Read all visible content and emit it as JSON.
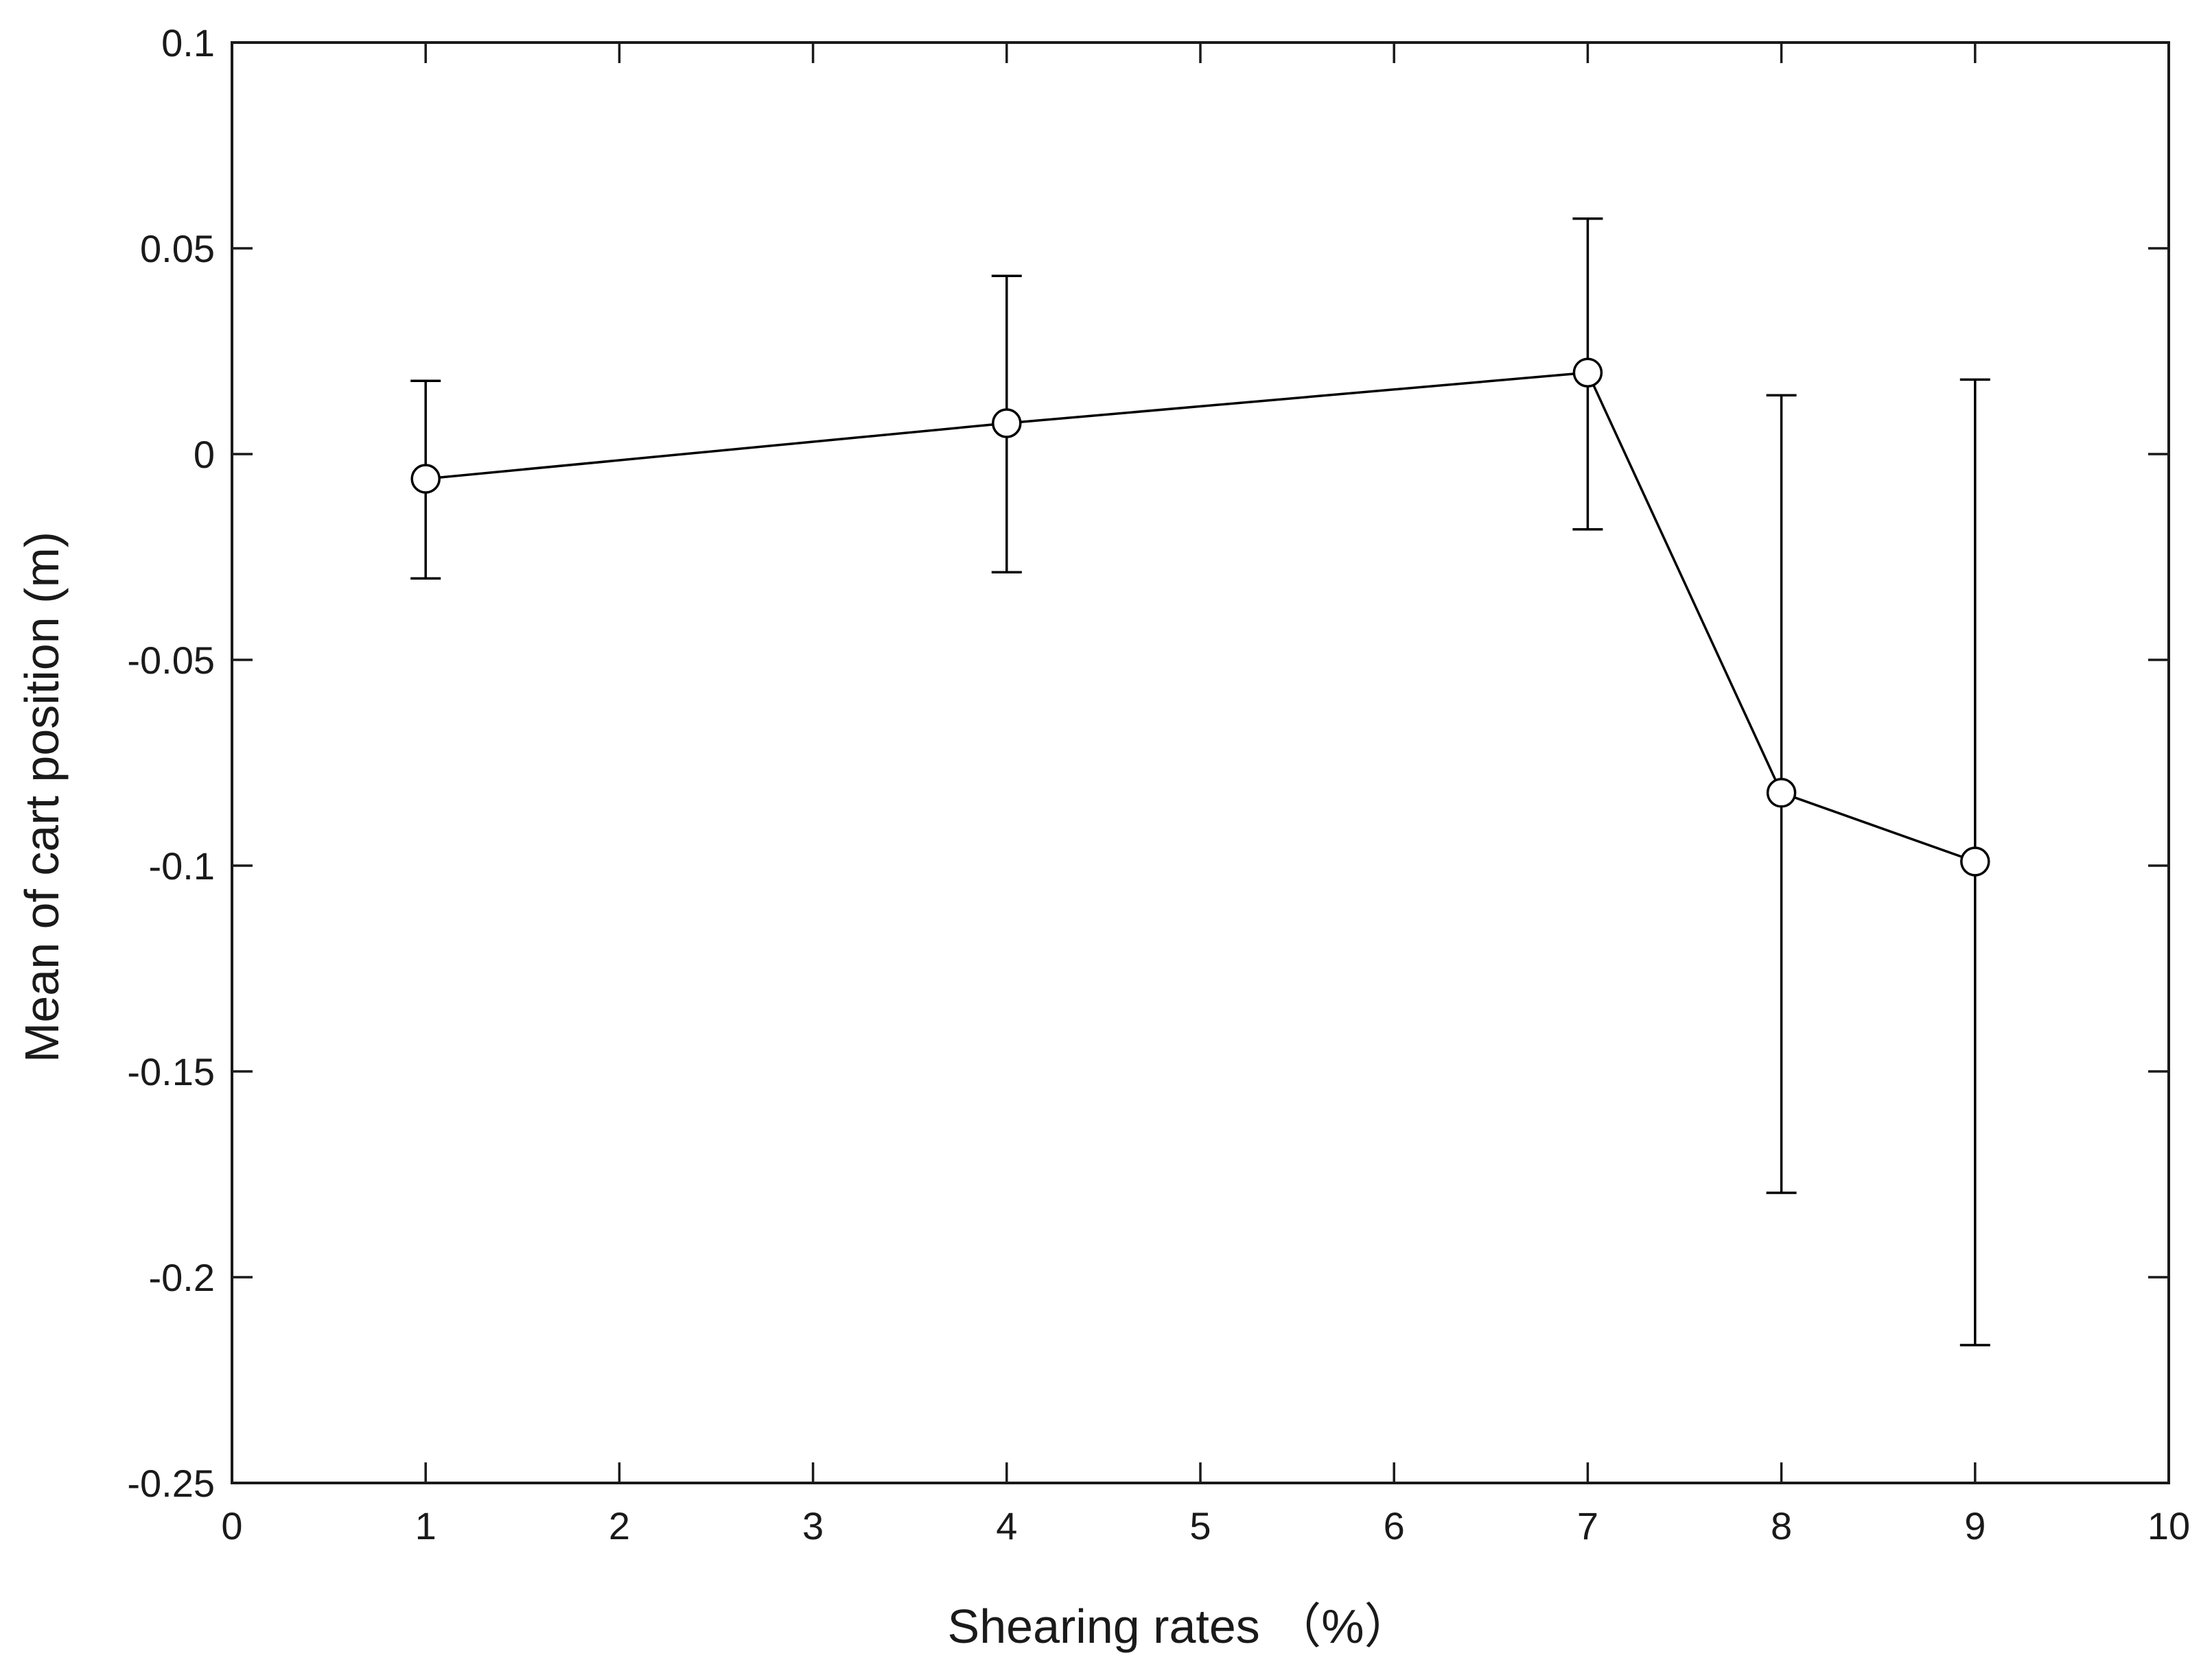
{
  "chart_data": {
    "type": "line",
    "title": "",
    "xlabel": "Shearing rates （%）",
    "ylabel": "Mean of cart position (m)",
    "xlim": [
      0,
      10
    ],
    "ylim": [
      -0.25,
      0.1
    ],
    "xticks": [
      0,
      1,
      2,
      3,
      4,
      5,
      6,
      7,
      8,
      9,
      10
    ],
    "xtick_labels": [
      "0",
      "1",
      "2",
      "3",
      "4",
      "5",
      "6",
      "7",
      "8",
      "9",
      "10"
    ],
    "yticks": [
      0.1,
      0.05,
      0,
      -0.05,
      -0.1,
      -0.15,
      -0.2,
      -0.25
    ],
    "ytick_labels": [
      "0.1",
      "0.05",
      "0",
      "-0.05",
      "-0.1",
      "-0.15",
      "-0.2",
      "-0.25"
    ],
    "grid": false,
    "marker": "open-circle",
    "series": [
      {
        "name": "Mean of cart position",
        "x": [
          1,
          4,
          7,
          8,
          9
        ],
        "y": [
          -0.006,
          0.0075,
          0.0198,
          -0.0823,
          -0.099
        ],
        "error_lower": [
          -0.0302,
          -0.0287,
          -0.0183,
          -0.1795,
          -0.2165
        ],
        "error_upper": [
          0.0178,
          0.0433,
          0.0572,
          0.0143,
          0.0181
        ]
      }
    ]
  }
}
